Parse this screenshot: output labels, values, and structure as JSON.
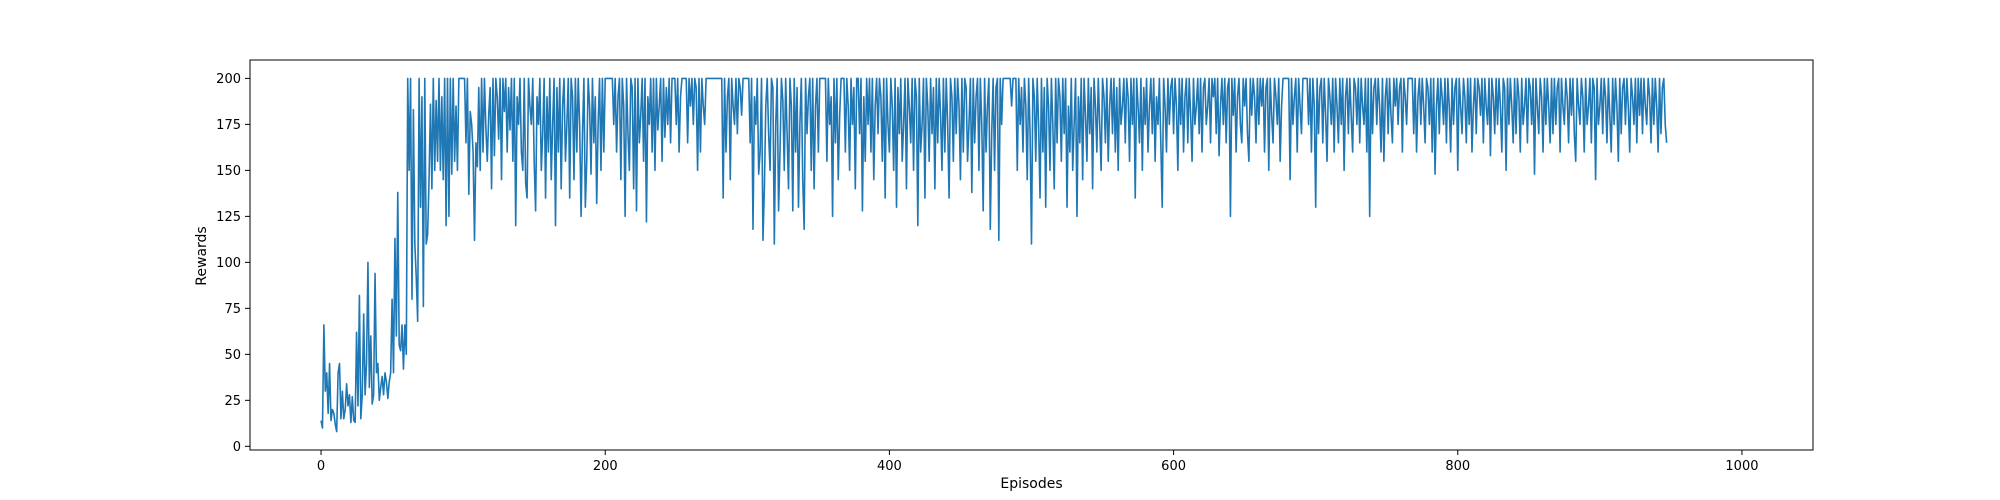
{
  "chart_data": {
    "type": "line",
    "title": "",
    "xlabel": "Episodes",
    "ylabel": "Rewards",
    "xlim": [
      -50,
      1050
    ],
    "ylim": [
      -2,
      210
    ],
    "xticks": [
      0,
      200,
      400,
      600,
      800,
      1000
    ],
    "yticks": [
      0,
      25,
      50,
      75,
      100,
      125,
      150,
      175,
      200
    ],
    "grid": false,
    "series": [
      {
        "color": "#1f77b4",
        "x_start": 0,
        "x_step": 1,
        "values": [
          14,
          10,
          66,
          30,
          40,
          18,
          45,
          14,
          20,
          18,
          12,
          8,
          40,
          45,
          15,
          30,
          15,
          20,
          34,
          22,
          28,
          13,
          27,
          14,
          13,
          62,
          22,
          82,
          15,
          28,
          72,
          28,
          45,
          100,
          32,
          60,
          23,
          28,
          94,
          40,
          45,
          25,
          32,
          38,
          28,
          40,
          35,
          26,
          35,
          40,
          80,
          40,
          113,
          60,
          138,
          55,
          52,
          66,
          42,
          66,
          50,
          200,
          150,
          200,
          80,
          183,
          110,
          92,
          68,
          200,
          130,
          190,
          76,
          200,
          110,
          115,
          145,
          186,
          140,
          200,
          150,
          188,
          155,
          200,
          150,
          190,
          145,
          200,
          120,
          200,
          125,
          200,
          148,
          200,
          155,
          185,
          150,
          200,
          200,
          200,
          200,
          200,
          165,
          200,
          137,
          182,
          175,
          160,
          112,
          165,
          152,
          195,
          150,
          200,
          160,
          200,
          173,
          155,
          180,
          195,
          140,
          200,
          158,
          200,
          190,
          167,
          200,
          145,
          200,
          182,
          200,
          160,
          195,
          172,
          200,
          155,
          200,
          120,
          190,
          175,
          200,
          160,
          150,
          200,
          143,
          135,
          200,
          185,
          175,
          200,
          155,
          128,
          190,
          175,
          200,
          150,
          170,
          200,
          135,
          190,
          160,
          200,
          145,
          175,
          200,
          120,
          195,
          160,
          200,
          140,
          185,
          200,
          155,
          175,
          200,
          135,
          200,
          190,
          145,
          200,
          160,
          200,
          175,
          125,
          170,
          200,
          130,
          155,
          200,
          185,
          148,
          200,
          165,
          190,
          132,
          175,
          200,
          150,
          200,
          160,
          200,
          200,
          200,
          200,
          200,
          200,
          175,
          200,
          160,
          190,
          200,
          145,
          200,
          185,
          125,
          200,
          170,
          150,
          200,
          195,
          140,
          200,
          128,
          200,
          165,
          180,
          200,
          155,
          200,
          122,
          190,
          175,
          200,
          160,
          200,
          150,
          200,
          172,
          185,
          200,
          155,
          200,
          168,
          195,
          175,
          200,
          165,
          200,
          200,
          200,
          175,
          200,
          160,
          190,
          200,
          200,
          200,
          200,
          165,
          200,
          185,
          200,
          175,
          200,
          195,
          150,
          200,
          160,
          200,
          185,
          175,
          200,
          200,
          200,
          200,
          200,
          200,
          200,
          200,
          200,
          200,
          200,
          200,
          135,
          200,
          160,
          190,
          200,
          145,
          200,
          185,
          175,
          200,
          170,
          200,
          195,
          180,
          200,
          200,
          200,
          200,
          200,
          165,
          200,
          118,
          190,
          175,
          200,
          148,
          160,
          200,
          112,
          140,
          185,
          200,
          170,
          150,
          200,
          195,
          110,
          175,
          200,
          128,
          160,
          200,
          188,
          150,
          200,
          170,
          140,
          200,
          185,
          128,
          200,
          160,
          195,
          130,
          175,
          200,
          145,
          118,
          200,
          170,
          190,
          200,
          150,
          200,
          140,
          185,
          200,
          160,
          200,
          200,
          200,
          200,
          200,
          155,
          200,
          175,
          190,
          125,
          200,
          165,
          200,
          145,
          180,
          200,
          200,
          200,
          160,
          200,
          185,
          150,
          200,
          175,
          195,
          140,
          200,
          200,
          170,
          200,
          128,
          190,
          155,
          200,
          175,
          200,
          160,
          200,
          145,
          185,
          200,
          170,
          200,
          190,
          155,
          200,
          135,
          200,
          175,
          160,
          200,
          185,
          150,
          200,
          130,
          195,
          170,
          200,
          155,
          175,
          200,
          140,
          200,
          185,
          165,
          200,
          150,
          200,
          190,
          120,
          200,
          160,
          175,
          200,
          135,
          200,
          185,
          155,
          200,
          170,
          195,
          140,
          200,
          165,
          200,
          180,
          150,
          200,
          160,
          200,
          175,
          135,
          200,
          190,
          155,
          200,
          170,
          200,
          185,
          145,
          200,
          160,
          200,
          195,
          155,
          175,
          200,
          138,
          200,
          165,
          190,
          200,
          150,
          200,
          175,
          128,
          200,
          160,
          185,
          200,
          118,
          170,
          200,
          150,
          195,
          200,
          112,
          200,
          175,
          200,
          200,
          200,
          200,
          200,
          200,
          185,
          200,
          200,
          200,
          150,
          200,
          175,
          195,
          160,
          200,
          185,
          145,
          200,
          170,
          110,
          200,
          190,
          155,
          200,
          175,
          135,
          200,
          160,
          195,
          130,
          200,
          185,
          150,
          200,
          175,
          140,
          200,
          165,
          200,
          190,
          155,
          200,
          170,
          200,
          130,
          185,
          160,
          200,
          150,
          175,
          200,
          125,
          190,
          165,
          200,
          145,
          200,
          180,
          155,
          200,
          170,
          195,
          140,
          200,
          185,
          160,
          200,
          175,
          150,
          200,
          190,
          165,
          200,
          155,
          185,
          200,
          170,
          200,
          160,
          195,
          150,
          200,
          175,
          185,
          200,
          165,
          200,
          190,
          155,
          200,
          175,
          200,
          135,
          200,
          185,
          165,
          200,
          150,
          195,
          175,
          200,
          160,
          185,
          200,
          170,
          200,
          155,
          190,
          175,
          200,
          165,
          130,
          200,
          185,
          160,
          200,
          175,
          195,
          200,
          170,
          200,
          185,
          150,
          200,
          175,
          200,
          160,
          190,
          200,
          165,
          200,
          180,
          155,
          200,
          175,
          185,
          200,
          170,
          200,
          160,
          195,
          200,
          175,
          185,
          200,
          165,
          200,
          190,
          200,
          170,
          200,
          158,
          185,
          200,
          175,
          200,
          165,
          195,
          200,
          125,
          200,
          180,
          200,
          160,
          190,
          200,
          175,
          165,
          200,
          185,
          200,
          170,
          155,
          200,
          180,
          200,
          190,
          165,
          200,
          175,
          200,
          185,
          200,
          160,
          195,
          200,
          150,
          200,
          180,
          165,
          200,
          190,
          175,
          200,
          155,
          185,
          200,
          200,
          200,
          200,
          200,
          145,
          200,
          175,
          190,
          200,
          160,
          200,
          185,
          170,
          200,
          200,
          200,
          200,
          175,
          200,
          160,
          200,
          185,
          130,
          200,
          170,
          195,
          200,
          165,
          200,
          180,
          155,
          200,
          190,
          175,
          200,
          160,
          200,
          185,
          165,
          200,
          175,
          200,
          150,
          190,
          200,
          170,
          200,
          180,
          160,
          200,
          195,
          175,
          200,
          165,
          200,
          185,
          175,
          200,
          160,
          200,
          125,
          200,
          170,
          195,
          200,
          175,
          200,
          185,
          160,
          200,
          155,
          190,
          200,
          170,
          200,
          180,
          165,
          200,
          185,
          200,
          175,
          195,
          200,
          160,
          200,
          190,
          175,
          200,
          200,
          200,
          200,
          170,
          200,
          160,
          190,
          200,
          175,
          200,
          185,
          165,
          200,
          195,
          175,
          200,
          160,
          200,
          148,
          185,
          200,
          170,
          200,
          190,
          175,
          200,
          165,
          200,
          185,
          160,
          200,
          175,
          195,
          200,
          150,
          200,
          185,
          170,
          200,
          190,
          165,
          200,
          175,
          200,
          160,
          185,
          200,
          170,
          200,
          195,
          180,
          200,
          165,
          200,
          185,
          175,
          200,
          158,
          200,
          190,
          170,
          200,
          175,
          200,
          185,
          160,
          200,
          195,
          150,
          200,
          175,
          200,
          185,
          165,
          200,
          170,
          200,
          190,
          160,
          200,
          175,
          185,
          200,
          165,
          200,
          195,
          175,
          200,
          148,
          200,
          185,
          170,
          200,
          190,
          160,
          200,
          175,
          200,
          185,
          165,
          200,
          170,
          200,
          175,
          195,
          200,
          160,
          200,
          185,
          175,
          200,
          190,
          165,
          200,
          180,
          200,
          170,
          155,
          200,
          185,
          175,
          200,
          190,
          160,
          200,
          175,
          185,
          200,
          165,
          200,
          195,
          145,
          200,
          175,
          185,
          200,
          170,
          200,
          190,
          165,
          200,
          180,
          160,
          200,
          175,
          200,
          185,
          155,
          200,
          170,
          195,
          200,
          175,
          200,
          185,
          160,
          200,
          190,
          175,
          200,
          165,
          200,
          180,
          200,
          170,
          200,
          185,
          175,
          200,
          190,
          165,
          200,
          175,
          200,
          185,
          160,
          200,
          170,
          195,
          200,
          175,
          165
        ]
      }
    ]
  }
}
